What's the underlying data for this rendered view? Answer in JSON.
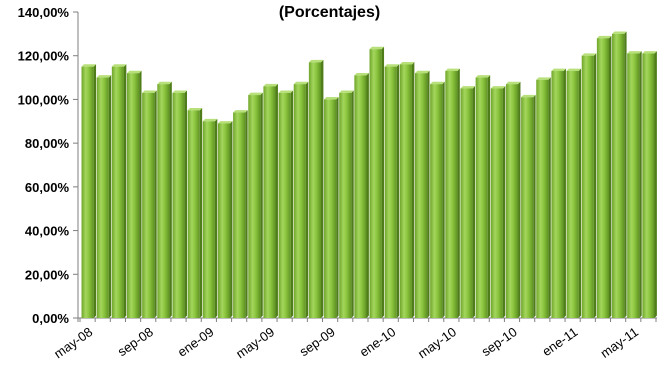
{
  "chart_data": {
    "type": "bar",
    "title": "(Porcentajes)",
    "xlabel": "",
    "ylabel": "",
    "ylim": [
      0,
      140
    ],
    "y_tick_values": [
      0,
      20,
      40,
      60,
      80,
      100,
      120,
      140
    ],
    "y_tick_labels": [
      "0,00%",
      "20,00%",
      "40,00%",
      "60,00%",
      "80,00%",
      "100,00%",
      "120,00%",
      "140,00%"
    ],
    "x_tick_labels": [
      "may-08",
      "sep-08",
      "ene-09",
      "may-09",
      "sep-09",
      "ene-10",
      "may-10",
      "sep-10",
      "ene-11",
      "may-11"
    ],
    "x_tick_every": 4,
    "grid": false,
    "legend": "none",
    "bar_color": "#8cc63f",
    "categories": [
      "may-08",
      "jun-08",
      "jul-08",
      "ago-08",
      "sep-08",
      "oct-08",
      "nov-08",
      "dic-08",
      "ene-09",
      "feb-09",
      "mar-09",
      "abr-09",
      "may-09",
      "jun-09",
      "jul-09",
      "ago-09",
      "sep-09",
      "oct-09",
      "nov-09",
      "dic-09",
      "ene-10",
      "feb-10",
      "mar-10",
      "abr-10",
      "may-10",
      "jun-10",
      "jul-10",
      "ago-10",
      "sep-10",
      "oct-10",
      "nov-10",
      "dic-10",
      "ene-11",
      "feb-11",
      "mar-11",
      "abr-11",
      "may-11",
      "jun-11"
    ],
    "values": [
      115,
      110,
      115,
      112,
      103,
      107,
      103,
      95,
      90,
      89,
      94,
      102,
      106,
      103,
      107,
      117,
      100,
      103,
      111,
      123,
      115,
      116,
      112,
      107,
      113,
      105,
      110,
      105,
      107,
      101,
      109,
      113,
      113,
      120,
      128,
      130,
      121,
      121
    ]
  }
}
